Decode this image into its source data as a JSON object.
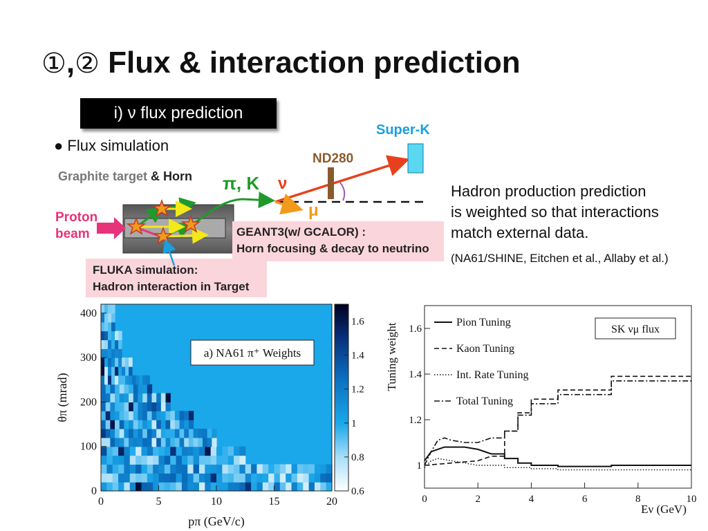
{
  "slide": {
    "title_circ1": "①",
    "title_comma": ",",
    "title_circ2": "②",
    "title_text": " Flux & interaction prediction",
    "subtitle": "i) ν flux prediction",
    "bullet": "● Flux simulation",
    "hadron_lines": [
      "Hadron production prediction",
      "is weighted so that interactions",
      "match external data."
    ],
    "references": "(NA61/SHINE, Eitchen et al., Allaby et al.)"
  },
  "beamline": {
    "target_label_a": "Graphite target",
    "target_label_b": " & Horn",
    "proton_line1": "Proton",
    "proton_line2": "beam",
    "pik": "π, K",
    "nu": "ν",
    "mu": "μ",
    "nd280": "ND280",
    "superk": "Super-K",
    "geant_line1": "GEANT3(w/ GCALOR) :",
    "geant_line2": "Horn focusing & decay to neutrino",
    "fluka_line1": "FLUKA simulation:",
    "fluka_line2": "Hadron interaction in Target",
    "colors": {
      "target_text": "#777777",
      "proton": "#e8327a",
      "pik": "#1e9a2a",
      "nu": "#e8401c",
      "mu": "#f29a1a",
      "superk": "#1a9fe0",
      "nd280": "#8b5a2b",
      "geant_bg": "#fbd5dc",
      "fluka_bg": "#fbd5dc"
    }
  },
  "chart_data": [
    {
      "type": "heatmap",
      "legend_box": "a) NA61 π⁺ Weights",
      "xlabel": "pπ (GeV/c)",
      "ylabel": "θπ (mrad)",
      "xlim": [
        0,
        20
      ],
      "ylim": [
        0,
        420
      ],
      "x_ticks": [
        "0",
        "5",
        "10",
        "15",
        "20"
      ],
      "y_ticks": [
        "0",
        "100",
        "200",
        "300",
        "400"
      ],
      "colorbar_range": [
        0.6,
        1.7
      ],
      "colorbar_ticks": [
        "0.6",
        "0.8",
        "1",
        "1.2",
        "1.4",
        "1.6"
      ],
      "colors": {
        "background": "#1aa8ea",
        "low": "#ffffff",
        "high": "#000033"
      }
    },
    {
      "type": "line",
      "legend_box": "SK νμ flux",
      "xlabel": "Eν (GeV)",
      "ylabel": "Tuning weight",
      "xlim": [
        0,
        10
      ],
      "ylim": [
        0.9,
        1.7
      ],
      "x_ticks": [
        "0",
        "2",
        "4",
        "6",
        "8",
        "10"
      ],
      "y_ticks": [
        "1",
        "1.2",
        "1.4",
        "1.6"
      ],
      "series": [
        {
          "name": "Pion Tuning",
          "style": "solid",
          "x": [
            0,
            0.25,
            0.5,
            0.75,
            1.0,
            1.5,
            2.0,
            2.5,
            3.0,
            3.5,
            4.0,
            5.0,
            7.0,
            10.0
          ],
          "y": [
            1.02,
            1.06,
            1.07,
            1.08,
            1.08,
            1.08,
            1.07,
            1.05,
            1.03,
            1.01,
            1.0,
            0.995,
            1.0,
            1.0
          ]
        },
        {
          "name": "Kaon Tuning",
          "style": "dashed",
          "x": [
            0,
            0.5,
            1.0,
            2.0,
            2.5,
            3.0,
            3.5,
            4.0,
            5.0,
            7.0,
            9.75,
            10.0
          ],
          "y": [
            1.0,
            1.005,
            1.01,
            1.02,
            1.04,
            1.15,
            1.23,
            1.29,
            1.33,
            1.39,
            1.39,
            1.4
          ]
        },
        {
          "name": "Int. Rate Tuning",
          "style": "dotted",
          "x": [
            0,
            0.25,
            0.5,
            1.0,
            2.0,
            3.0,
            4.0,
            5.0,
            7.0,
            10.0
          ],
          "y": [
            0.99,
            1.02,
            1.03,
            1.02,
            1.0,
            0.99,
            0.985,
            0.98,
            0.98,
            0.98
          ]
        },
        {
          "name": "Total Tuning",
          "style": "dashdot",
          "x": [
            0,
            0.25,
            0.5,
            0.75,
            1.0,
            1.5,
            2.0,
            2.5,
            3.0,
            3.5,
            4.0,
            5.0,
            7.0,
            9.75,
            10.0
          ],
          "y": [
            1.0,
            1.06,
            1.11,
            1.12,
            1.11,
            1.1,
            1.1,
            1.12,
            1.15,
            1.22,
            1.27,
            1.31,
            1.37,
            1.37,
            1.38
          ]
        }
      ]
    }
  ]
}
